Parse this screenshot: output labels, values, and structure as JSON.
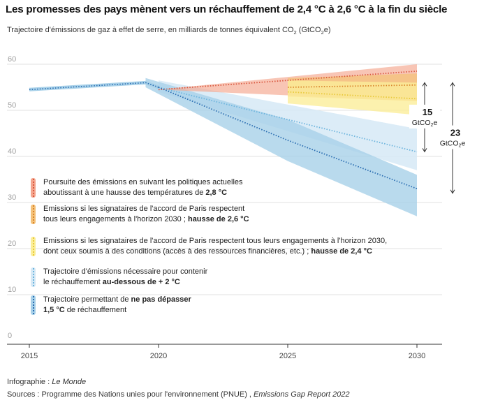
{
  "title": "Les promesses des pays mènent vers un réchauffement de 2,4 °C à 2,6 °C à la fin du siècle",
  "subtitle": {
    "text": "Trajectoire d'émissions de gaz à effet de serre, en milliards de tonnes équivalent CO",
    "sub": "2",
    "tail": " (GtCO",
    "sub2": "2",
    "end": "e)"
  },
  "chart_data": {
    "type": "area",
    "x_ticks": [
      "2015",
      "2020",
      "2025",
      "2030"
    ],
    "y_ticks": [
      "0",
      "10",
      "20",
      "30",
      "40",
      "50",
      "60"
    ],
    "xlim": [
      2015,
      2030
    ],
    "ylim": [
      0,
      60
    ],
    "grid": true,
    "legend_placement": "left",
    "historical": {
      "x": [
        2015,
        2019.5,
        2020
      ],
      "y": [
        54.5,
        56,
        55
      ]
    },
    "series": [
      {
        "label_parts": [
          {
            "text": "Poursuite des émissions en suivant les politiques actuelles",
            "bold": false,
            "br": true
          },
          {
            "text": "aboutissant à une hausse des températures de ",
            "bold": false
          },
          {
            "text": "2,8 °C",
            "bold": true
          }
        ],
        "color": "#f4a68e",
        "line_color": "#d9573f",
        "x": [
          2020,
          2030
        ],
        "y": [
          54.5,
          58.5
        ],
        "band": {
          "x": [
            2020,
            2030
          ],
          "low": [
            54.5,
            52
          ],
          "high": [
            54.5,
            60
          ]
        }
      },
      {
        "label_parts": [
          {
            "text": "Emissions si les signataires de l'accord de Paris respectent",
            "bold": false,
            "br": true
          },
          {
            "text": "tous leurs engagements à l'horizon 2030 ; ",
            "bold": false
          },
          {
            "text": "hausse de 2,6 °C",
            "bold": true
          }
        ],
        "color": "#f4c27a",
        "line_color": "#d9842a",
        "x": [
          2025,
          2030
        ],
        "y": [
          55,
          55.5
        ],
        "band": {
          "x": [
            2025,
            2030
          ],
          "low": [
            53,
            52
          ],
          "high": [
            57,
            58
          ]
        }
      },
      {
        "label_parts": [
          {
            "text": "Emissions si les signataires de l'accord de Paris respectent tous leurs engagements à l'horizon 2030,",
            "bold": false,
            "br": true
          },
          {
            "text": "dont ceux soumis à des conditions (accès à des ressources financières, etc.) ; ",
            "bold": false
          },
          {
            "text": "hausse de 2,4 °C",
            "bold": true
          }
        ],
        "color": "#fbee9a",
        "line_color": "#e8c93a",
        "x": [
          2025,
          2030
        ],
        "y": [
          54,
          52.5
        ],
        "band": {
          "x": [
            2025,
            2030
          ],
          "low": [
            51.5,
            49
          ],
          "high": [
            56.5,
            56
          ]
        }
      },
      {
        "label_parts": [
          {
            "text": "Trajectoire d'émissions nécessaire pour contenir",
            "bold": false,
            "br": true
          },
          {
            "text": "le réchauffement ",
            "bold": false
          },
          {
            "text": "au-dessous de + 2 °C",
            "bold": true
          }
        ],
        "color": "#d6e9f6",
        "line_color": "#6cb4dd",
        "x": [
          2020,
          2030
        ],
        "y": [
          55,
          41
        ],
        "band": {
          "x": [
            2020,
            2030
          ],
          "low": [
            54,
            37
          ],
          "high": [
            56.5,
            46
          ]
        }
      },
      {
        "label_parts": [
          {
            "text": "Trajectoire permettant de ",
            "bold": false
          },
          {
            "text": "ne pas dépasser",
            "bold": true,
            "br": true
          },
          {
            "text": "1,5 °C",
            "bold": true
          },
          {
            "text": " de réchauffement",
            "bold": false
          }
        ],
        "color": "#a8d1e9",
        "line_color": "#2a6db1",
        "x": [
          2020,
          2025,
          2030
        ],
        "y": [
          55,
          43.5,
          33
        ],
        "band": {
          "x": [
            2019.5,
            2025,
            2030
          ],
          "low": [
            55,
            39,
            27
          ],
          "high": [
            57,
            48,
            36
          ]
        }
      }
    ],
    "annotations": [
      {
        "value": "15",
        "unit": "GtCO",
        "unit_sub": "2",
        "unit_tail": "e",
        "from": 56,
        "to": 41
      },
      {
        "value": "23",
        "unit": "GtCO",
        "unit_sub": "2",
        "unit_tail": "e",
        "from": 56,
        "to": 32
      }
    ]
  },
  "credit": {
    "label": "Infographie : ",
    "name": "Le Monde"
  },
  "source": {
    "label": "Sources : Programme des Nations unies pour l'environnement (PNUE) , ",
    "name": "Emissions Gap Report 2022"
  }
}
